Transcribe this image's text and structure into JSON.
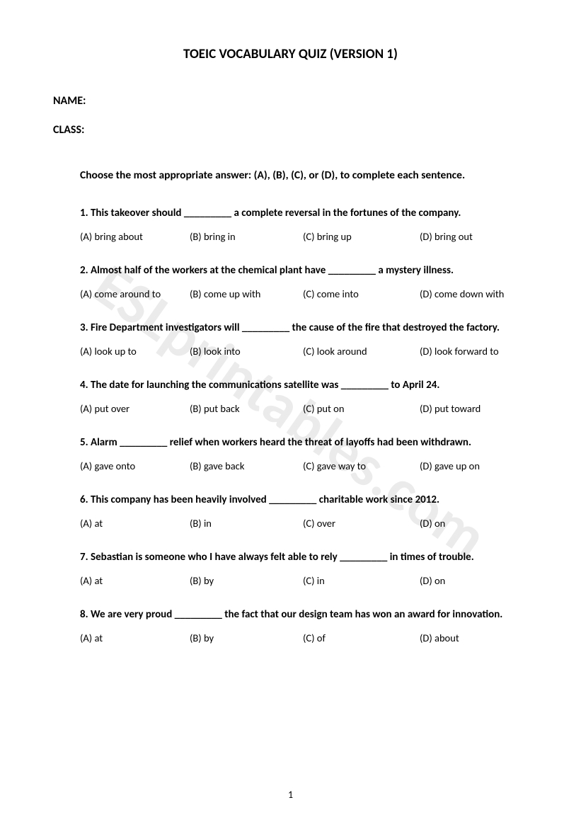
{
  "watermark": "ESLprintables.com",
  "title": "TOEIC VOCABULARY QUIZ (VERSION 1)",
  "fields": {
    "name": "NAME:",
    "class": "CLASS:"
  },
  "instruction": "Choose the most appropriate answer: (A), (B), (C), or (D), to complete each sentence.",
  "questions": [
    {
      "q": "1. This takeover should _________ a complete reversal in the fortunes of the company.",
      "a": "(A) bring about",
      "b": "(B) bring in",
      "c": "(C) bring up",
      "d": "(D) bring out"
    },
    {
      "q": "2. Almost half of the workers at the chemical plant have _________ a mystery illness.",
      "a": "(A) come around to",
      "b": "(B) come up with",
      "c": "(C) come into",
      "d": "(D) come down with"
    },
    {
      "q": "3. Fire Department investigators will _________ the cause of the fire that destroyed the factory.",
      "a": "(A) look up to",
      "b": "(B) look into",
      "c": "(C) look around",
      "d": "(D) look forward to"
    },
    {
      "q": "4. The date for launching the communications satellite was _________ to April 24.",
      "a": "(A) put over",
      "b": "(B) put back",
      "c": "(C) put on",
      "d": "(D) put toward"
    },
    {
      "q": "5. Alarm _________ relief when workers heard the threat of layoffs had been withdrawn.",
      "a": "(A) gave onto",
      "b": "(B) gave back",
      "c": "(C) gave way to",
      "d": "(D) gave up on"
    },
    {
      "q": "6. This company has been heavily involved _________ charitable work since 2012.",
      "a": "(A) at",
      "b": "(B) in",
      "c": "(C) over",
      "d": "(D) on"
    },
    {
      "q": "7. Sebastian is someone who I have always felt able to rely _________ in times of trouble.",
      "a": "(A) at",
      "b": "(B) by",
      "c": "(C) in",
      "d": "(D) on"
    },
    {
      "q": "8. We are very proud _________ the fact that our design team has won an award for innovation.",
      "a": "(A) at",
      "b": "(B) by",
      "c": "(C) of",
      "d": "(D) about"
    }
  ],
  "page_number": "1"
}
